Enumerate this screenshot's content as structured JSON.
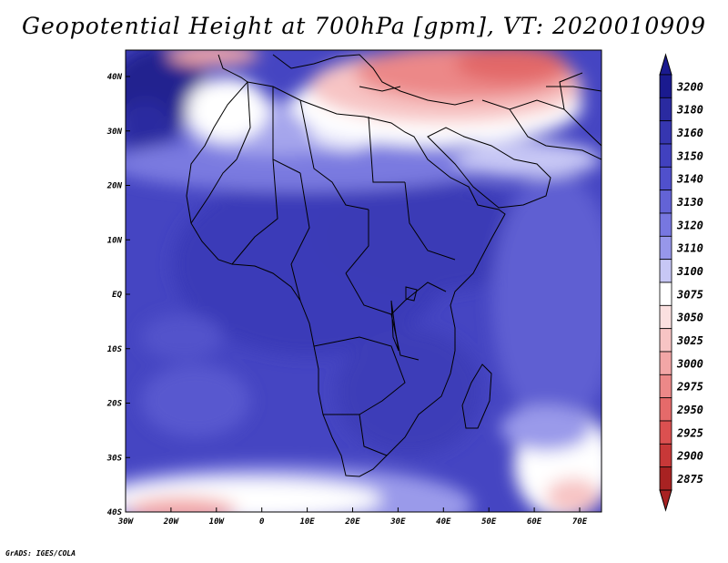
{
  "title": "Geopotential Height at 700hPa [gpm], VT: 2020010909",
  "credit": "GrADS: IGES/COLA",
  "lat_labels": [
    "40N",
    "30N",
    "20N",
    "10N",
    "EQ",
    "10S",
    "20S",
    "30S",
    "40S"
  ],
  "lon_labels": [
    "30W",
    "20W",
    "10W",
    "0",
    "10E",
    "20E",
    "30E",
    "40E",
    "50E",
    "60E",
    "70E"
  ],
  "colorbar": {
    "levels": [
      {
        "label": "3200",
        "color": "#1a1a8f"
      },
      {
        "label": "3180",
        "color": "#2a2aa0"
      },
      {
        "label": "3160",
        "color": "#3636b0"
      },
      {
        "label": "3150",
        "color": "#4141bf"
      },
      {
        "label": "3140",
        "color": "#5050cc"
      },
      {
        "label": "3130",
        "color": "#6363d6"
      },
      {
        "label": "3120",
        "color": "#7777e0"
      },
      {
        "label": "3110",
        "color": "#9797ea"
      },
      {
        "label": "3100",
        "color": "#c7c7f5"
      },
      {
        "label": "3075",
        "color": "#ffffff"
      },
      {
        "label": "3050",
        "color": "#fbe0e0"
      },
      {
        "label": "3025",
        "color": "#f7c4c4"
      },
      {
        "label": "3000",
        "color": "#f2a6a6"
      },
      {
        "label": "2975",
        "color": "#ec8888"
      },
      {
        "label": "2950",
        "color": "#e56a6a"
      },
      {
        "label": "2925",
        "color": "#db5050"
      },
      {
        "label": "2900",
        "color": "#c83838"
      },
      {
        "label": "2875",
        "color": "#a82222"
      }
    ]
  },
  "colors": {
    "base": "#4848c4",
    "background": "#ffffff"
  }
}
